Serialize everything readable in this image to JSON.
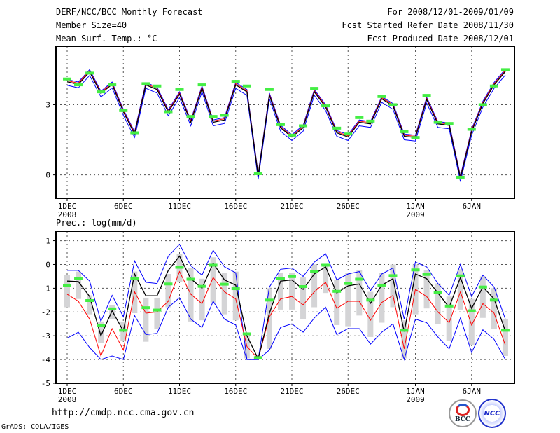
{
  "header": {
    "title": "DERF/NCC/BCC Monthly Forecast",
    "member_size": "Member Size=40",
    "variable1": "Mean Surf. Temp.: °C",
    "period": "For 2008/12/01-2009/01/09",
    "start_date": "Fcst Started Refer Date 2008/11/30",
    "produced_date": "Fcst Produced Date 2008/12/01"
  },
  "footer": {
    "url": "http://cmdp.ncc.cma.gov.cn",
    "credit": "GrADS: COLA/IGES",
    "logo_bcc": "BCC",
    "logo_ncc": "NCC"
  },
  "colors": {
    "blue": "#0000ff",
    "red": "#ff0000",
    "black": "#000000",
    "obs": "#44ee44",
    "clim": "#d4d4d6",
    "grid": "#555555"
  },
  "chart_data": [
    {
      "type": "line",
      "title": "Mean Surf. Temp.: °C",
      "x_start": "2008-12-01",
      "n_days": 40,
      "x_ticks": [
        {
          "day": 0,
          "label": "1DEC",
          "sub": "2008"
        },
        {
          "day": 5,
          "label": "6DEC"
        },
        {
          "day": 10,
          "label": "11DEC"
        },
        {
          "day": 15,
          "label": "16DEC"
        },
        {
          "day": 20,
          "label": "21DEC"
        },
        {
          "day": 25,
          "label": "26DEC"
        },
        {
          "day": 31,
          "label": "1JAN",
          "sub": "2009"
        },
        {
          "day": 36,
          "label": "6JAN"
        }
      ],
      "y_ticks": [
        3,
        0
      ],
      "ylim": [
        -1.0,
        5.5
      ],
      "grid": true,
      "series": [
        {
          "name": "ensemble-upper",
          "color": "blue",
          "values": [
            4.08,
            3.97,
            4.5,
            3.58,
            3.97,
            2.8,
            1.85,
            3.95,
            3.75,
            2.78,
            3.55,
            2.35,
            3.8,
            2.35,
            2.45,
            3.95,
            3.65,
            0.06,
            3.5,
            2.12,
            1.72,
            2.12,
            3.65,
            3.0,
            1.9,
            1.72,
            2.35,
            2.28,
            3.35,
            3.05,
            1.75,
            1.7,
            3.32,
            2.28,
            2.22,
            -0.04,
            1.95,
            3.15,
            3.95,
            4.52
          ]
        },
        {
          "name": "ensemble-lower",
          "color": "blue",
          "values": [
            3.83,
            3.72,
            4.25,
            3.33,
            3.72,
            2.55,
            1.6,
            3.7,
            3.5,
            2.53,
            3.3,
            2.1,
            3.55,
            2.1,
            2.2,
            3.7,
            3.4,
            -0.19,
            3.25,
            1.87,
            1.47,
            1.87,
            3.4,
            2.75,
            1.65,
            1.47,
            2.1,
            2.03,
            3.1,
            2.8,
            1.5,
            1.45,
            3.07,
            2.03,
            1.97,
            -0.29,
            1.7,
            2.9,
            3.7,
            4.27
          ]
        },
        {
          "name": "ensemble-median",
          "color": "red",
          "values": [
            4.03,
            3.92,
            4.45,
            3.53,
            3.92,
            2.75,
            1.8,
            3.9,
            3.7,
            2.73,
            3.5,
            2.3,
            3.75,
            2.3,
            2.4,
            3.9,
            3.6,
            0.01,
            3.45,
            2.07,
            1.67,
            2.07,
            3.6,
            2.95,
            1.85,
            1.67,
            2.3,
            2.23,
            3.3,
            3.0,
            1.7,
            1.65,
            3.27,
            2.23,
            2.17,
            -0.09,
            1.9,
            3.1,
            3.9,
            4.47
          ]
        },
        {
          "name": "ensemble-mean",
          "color": "black",
          "values": [
            3.98,
            3.87,
            4.4,
            3.48,
            3.87,
            2.7,
            1.75,
            3.85,
            3.65,
            2.68,
            3.45,
            2.25,
            3.7,
            2.25,
            2.35,
            3.85,
            3.55,
            -0.04,
            3.4,
            2.02,
            1.62,
            2.02,
            3.55,
            2.9,
            1.8,
            1.62,
            2.25,
            2.18,
            3.25,
            2.95,
            1.65,
            1.6,
            3.22,
            2.18,
            2.12,
            -0.14,
            1.85,
            3.05,
            3.85,
            4.42
          ]
        }
      ],
      "observed": [
        4.1,
        3.85,
        4.35,
        3.55,
        3.85,
        2.75,
        1.8,
        3.9,
        3.8,
        2.7,
        3.65,
        2.5,
        3.85,
        2.5,
        2.55,
        4.0,
        3.8,
        0.05,
        3.65,
        2.15,
        1.7,
        2.1,
        3.7,
        2.95,
        2.0,
        1.75,
        2.45,
        2.3,
        3.35,
        3.0,
        1.85,
        1.6,
        3.4,
        2.25,
        2.2,
        -0.1,
        1.95,
        3.0,
        3.8,
        4.5
      ]
    },
    {
      "type": "line",
      "title": "Prec.: log(mm/d)",
      "x_start": "2008-12-01",
      "n_days": 40,
      "x_ticks": [
        {
          "day": 0,
          "label": "1DEC",
          "sub": "2008"
        },
        {
          "day": 5,
          "label": "6DEC"
        },
        {
          "day": 10,
          "label": "11DEC"
        },
        {
          "day": 15,
          "label": "16DEC"
        },
        {
          "day": 20,
          "label": "21DEC"
        },
        {
          "day": 25,
          "label": "26DEC"
        },
        {
          "day": 31,
          "label": "1JAN",
          "sub": "2009"
        },
        {
          "day": 36,
          "label": "6JAN"
        }
      ],
      "y_ticks": [
        1,
        0,
        -1,
        -2,
        -3,
        -4,
        -5
      ],
      "ylim": [
        -5,
        1.4
      ],
      "grid": true,
      "climatology_range": [
        [
          -0.45,
          -1.8
        ],
        [
          -0.3,
          -1.45
        ],
        [
          -1.3,
          -2.1
        ],
        [
          -2.4,
          -3.3
        ],
        [
          -1.7,
          -2.3
        ],
        [
          -2.4,
          -3.2
        ],
        [
          -0.3,
          -2.05
        ],
        [
          -1.4,
          -3.25
        ],
        [
          -1.4,
          -2.7
        ],
        [
          -0.4,
          -1.8
        ],
        [
          0.45,
          -0.75
        ],
        [
          -0.15,
          -2.4
        ],
        [
          -0.6,
          -2.35
        ],
        [
          0.3,
          -1.6
        ],
        [
          -0.35,
          -2.1
        ],
        [
          -0.3,
          -2.35
        ],
        [
          -3.0,
          -3.95
        ],
        [
          -3.85,
          -4.0
        ],
        [
          -1.0,
          -3.55
        ],
        [
          -0.35,
          -1.9
        ],
        [
          -0.35,
          -1.9
        ],
        [
          -0.55,
          -2.3
        ],
        [
          0.0,
          -1.8
        ],
        [
          0.0,
          -1.2
        ],
        [
          -0.65,
          -2.55
        ],
        [
          -0.35,
          -2.6
        ],
        [
          -0.25,
          -2.15
        ],
        [
          -1.15,
          -3.05
        ],
        [
          -0.35,
          -2.45
        ],
        [
          0.0,
          -1.8
        ],
        [
          -2.35,
          -3.95
        ],
        [
          0.0,
          -2.1
        ],
        [
          -0.25,
          -1.85
        ],
        [
          -0.8,
          -2.5
        ],
        [
          -1.35,
          -3.2
        ],
        [
          -0.2,
          -1.9
        ],
        [
          -1.45,
          -3.4
        ],
        [
          -0.5,
          -2.25
        ],
        [
          -1.0,
          -2.7
        ],
        [
          -2.3,
          -3.85
        ]
      ],
      "series": [
        {
          "name": "ensemble-upper",
          "color": "blue",
          "values": [
            -0.25,
            -0.25,
            -0.7,
            -2.4,
            -1.3,
            -2.2,
            0.15,
            -0.75,
            -0.8,
            0.35,
            0.85,
            -0.05,
            -0.45,
            0.6,
            -0.1,
            -0.35,
            -4.0,
            -4.0,
            -0.95,
            -0.2,
            -0.15,
            -0.5,
            0.1,
            0.45,
            -0.65,
            -0.4,
            -0.3,
            -1.1,
            -0.4,
            -0.15,
            -2.3,
            0.1,
            -0.1,
            -0.8,
            -1.3,
            0.0,
            -1.35,
            -0.45,
            -0.95,
            -2.3
          ]
        },
        {
          "name": "ensemble-lower",
          "color": "blue",
          "values": [
            -3.1,
            -2.85,
            -3.5,
            -4.0,
            -3.85,
            -4.0,
            -2.15,
            -2.95,
            -2.9,
            -1.8,
            -1.4,
            -2.3,
            -2.65,
            -1.55,
            -2.3,
            -2.55,
            -4.0,
            -4.0,
            -3.6,
            -2.65,
            -2.5,
            -2.85,
            -2.25,
            -1.8,
            -2.95,
            -2.7,
            -2.7,
            -3.35,
            -2.85,
            -2.5,
            -4.0,
            -2.3,
            -2.45,
            -3.05,
            -3.55,
            -2.25,
            -3.7,
            -2.75,
            -3.15,
            -4.0
          ]
        },
        {
          "name": "ensemble-median",
          "color": "red",
          "values": [
            -1.25,
            -1.55,
            -2.3,
            -3.85,
            -2.7,
            -3.6,
            -1.15,
            -2.05,
            -2.0,
            -1.55,
            -0.3,
            -1.25,
            -1.65,
            -0.55,
            -1.15,
            -1.45,
            -3.45,
            -3.97,
            -2.2,
            -1.45,
            -1.35,
            -1.7,
            -1.15,
            -0.75,
            -1.85,
            -1.55,
            -1.55,
            -2.35,
            -1.6,
            -1.3,
            -3.55,
            -1.05,
            -1.35,
            -2.0,
            -2.45,
            -1.15,
            -2.55,
            -1.65,
            -2.05,
            -3.4
          ]
        },
        {
          "name": "ensemble-mean",
          "color": "black",
          "values": [
            -0.7,
            -0.72,
            -1.35,
            -3.0,
            -1.95,
            -2.8,
            -0.4,
            -1.32,
            -1.32,
            -0.25,
            0.35,
            -0.6,
            -1.0,
            0.05,
            -0.65,
            -0.87,
            -3.0,
            -3.97,
            -2.05,
            -0.7,
            -0.65,
            -1.05,
            -0.4,
            -0.1,
            -1.2,
            -0.9,
            -0.82,
            -1.63,
            -0.87,
            -0.6,
            -2.83,
            -0.4,
            -0.6,
            -1.2,
            -1.8,
            -0.55,
            -1.85,
            -0.95,
            -1.45,
            -2.8
          ]
        }
      ],
      "observed": [
        -0.87,
        -0.6,
        -1.52,
        -2.58,
        -1.87,
        -2.77,
        -0.6,
        -1.82,
        -1.92,
        -0.82,
        -0.12,
        -0.62,
        -0.92,
        -0.03,
        -0.83,
        -1.02,
        -2.92,
        -3.92,
        -1.5,
        -0.58,
        -0.51,
        -0.93,
        -0.3,
        -0.03,
        -1.13,
        -0.8,
        -0.62,
        -1.5,
        -0.87,
        -0.47,
        -2.77,
        -0.23,
        -0.42,
        -1.18,
        -1.75,
        -0.48,
        -1.95,
        -0.95,
        -1.5,
        -2.77
      ]
    }
  ]
}
